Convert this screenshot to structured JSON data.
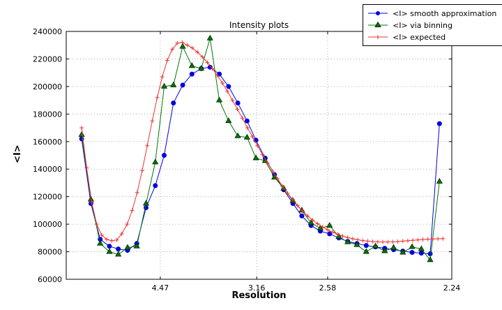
{
  "figure": {
    "title": "Intensity plots",
    "xlabel": "Resolution",
    "ylabel": "<I>"
  },
  "legend": {
    "position": "upper-right, outside axes",
    "entries": [
      {
        "label": "<I> smooth approximation",
        "color": "#0000dd",
        "marker": "circle"
      },
      {
        "label": "<I> via binning",
        "color": "#007700",
        "marker": "triangle",
        "edge": "#002200"
      },
      {
        "label": "<I> expected",
        "color": "#ee3333",
        "marker": "plus"
      }
    ]
  },
  "chart_data": {
    "type": "line",
    "title": "Intensity plots",
    "xlabel": "Resolution",
    "ylabel": "<I>",
    "ylim": [
      60000,
      240000
    ],
    "y_ticks": [
      60000,
      80000,
      100000,
      120000,
      140000,
      160000,
      180000,
      200000,
      220000,
      240000
    ],
    "x_ticks": [
      {
        "label": "4.47",
        "pos": 0.244
      },
      {
        "label": "3.16",
        "pos": 0.494
      },
      {
        "label": "2.58",
        "pos": 0.678
      },
      {
        "label": "2.24",
        "pos": 1.0
      }
    ],
    "x_scale_note": "resolution in Angstrom, decreasing left to right; pos is fraction of axis width",
    "grid": true,
    "series": [
      {
        "name": "<I> smooth approximation",
        "color": "#0000dd",
        "marker": "circle",
        "points": [
          [
            0.04,
            162000
          ],
          [
            0.064,
            115000
          ],
          [
            0.088,
            89000
          ],
          [
            0.112,
            84000
          ],
          [
            0.135,
            82000
          ],
          [
            0.159,
            81000
          ],
          [
            0.183,
            86000
          ],
          [
            0.207,
            112000
          ],
          [
            0.231,
            128000
          ],
          [
            0.254,
            150000
          ],
          [
            0.278,
            188000
          ],
          [
            0.302,
            201000
          ],
          [
            0.326,
            209000
          ],
          [
            0.35,
            213000
          ],
          [
            0.373,
            214000
          ],
          [
            0.397,
            209000
          ],
          [
            0.421,
            200000
          ],
          [
            0.445,
            188000
          ],
          [
            0.469,
            175000
          ],
          [
            0.492,
            161000
          ],
          [
            0.516,
            148000
          ],
          [
            0.54,
            136000
          ],
          [
            0.564,
            125000
          ],
          [
            0.588,
            115000
          ],
          [
            0.611,
            106000
          ],
          [
            0.635,
            99000
          ],
          [
            0.659,
            95000
          ],
          [
            0.683,
            93000
          ],
          [
            0.707,
            90000
          ],
          [
            0.73,
            87500
          ],
          [
            0.754,
            86000
          ],
          [
            0.778,
            84500
          ],
          [
            0.802,
            83500
          ],
          [
            0.826,
            82500
          ],
          [
            0.849,
            81500
          ],
          [
            0.873,
            80500
          ],
          [
            0.897,
            79500
          ],
          [
            0.921,
            79000
          ],
          [
            0.944,
            78500
          ],
          [
            0.968,
            173000
          ]
        ]
      },
      {
        "name": "<I> via binning",
        "color": "#007700",
        "marker": "triangle",
        "edge": "#002200",
        "points": [
          [
            0.04,
            165000
          ],
          [
            0.064,
            118000
          ],
          [
            0.088,
            86000
          ],
          [
            0.112,
            80000
          ],
          [
            0.135,
            78000
          ],
          [
            0.159,
            83000
          ],
          [
            0.183,
            84000
          ],
          [
            0.207,
            115000
          ],
          [
            0.231,
            145000
          ],
          [
            0.254,
            200000
          ],
          [
            0.278,
            201000
          ],
          [
            0.302,
            229000
          ],
          [
            0.326,
            215000
          ],
          [
            0.35,
            213000
          ],
          [
            0.373,
            235000
          ],
          [
            0.397,
            190000
          ],
          [
            0.421,
            175000
          ],
          [
            0.445,
            164000
          ],
          [
            0.469,
            163000
          ],
          [
            0.492,
            148000
          ],
          [
            0.516,
            146000
          ],
          [
            0.54,
            134000
          ],
          [
            0.564,
            126000
          ],
          [
            0.588,
            117000
          ],
          [
            0.611,
            110000
          ],
          [
            0.635,
            101000
          ],
          [
            0.659,
            97000
          ],
          [
            0.683,
            99000
          ],
          [
            0.707,
            91000
          ],
          [
            0.73,
            87000
          ],
          [
            0.754,
            85000
          ],
          [
            0.778,
            80000
          ],
          [
            0.802,
            84000
          ],
          [
            0.826,
            80500
          ],
          [
            0.849,
            83000
          ],
          [
            0.873,
            79500
          ],
          [
            0.897,
            83500
          ],
          [
            0.921,
            82000
          ],
          [
            0.944,
            74000
          ],
          [
            0.968,
            131000
          ]
        ]
      },
      {
        "name": "<I> expected",
        "color": "#ee3333",
        "marker": "plus",
        "points": [
          [
            0.04,
            170000
          ],
          [
            0.053,
            141000
          ],
          [
            0.066,
            116000
          ],
          [
            0.079,
            100000
          ],
          [
            0.092,
            92000
          ],
          [
            0.105,
            89000
          ],
          [
            0.118,
            88000
          ],
          [
            0.131,
            88500
          ],
          [
            0.144,
            93000
          ],
          [
            0.158,
            100000
          ],
          [
            0.171,
            110000
          ],
          [
            0.184,
            123000
          ],
          [
            0.197,
            139000
          ],
          [
            0.21,
            157000
          ],
          [
            0.223,
            175000
          ],
          [
            0.236,
            192000
          ],
          [
            0.249,
            207000
          ],
          [
            0.262,
            219000
          ],
          [
            0.275,
            227000
          ],
          [
            0.288,
            231500
          ],
          [
            0.301,
            232000
          ],
          [
            0.314,
            230000
          ],
          [
            0.327,
            228000
          ],
          [
            0.34,
            225000
          ],
          [
            0.353,
            221500
          ],
          [
            0.366,
            217500
          ],
          [
            0.379,
            213000
          ],
          [
            0.392,
            208000
          ],
          [
            0.405,
            202500
          ],
          [
            0.418,
            196500
          ],
          [
            0.431,
            190000
          ],
          [
            0.444,
            183500
          ],
          [
            0.457,
            177000
          ],
          [
            0.47,
            170000
          ],
          [
            0.483,
            163500
          ],
          [
            0.496,
            157000
          ],
          [
            0.509,
            150500
          ],
          [
            0.522,
            144500
          ],
          [
            0.535,
            138500
          ],
          [
            0.548,
            133000
          ],
          [
            0.561,
            127500
          ],
          [
            0.574,
            122500
          ],
          [
            0.587,
            118000
          ],
          [
            0.6,
            113500
          ],
          [
            0.613,
            109500
          ],
          [
            0.626,
            106000
          ],
          [
            0.639,
            103000
          ],
          [
            0.652,
            100300
          ],
          [
            0.665,
            98000
          ],
          [
            0.678,
            96000
          ],
          [
            0.691,
            94200
          ],
          [
            0.704,
            92700
          ],
          [
            0.717,
            91400
          ],
          [
            0.73,
            90300
          ],
          [
            0.743,
            89400
          ],
          [
            0.756,
            88700
          ],
          [
            0.769,
            88100
          ],
          [
            0.782,
            87700
          ],
          [
            0.795,
            87400
          ],
          [
            0.808,
            87200
          ],
          [
            0.821,
            87100
          ],
          [
            0.834,
            87100
          ],
          [
            0.847,
            87200
          ],
          [
            0.86,
            87400
          ],
          [
            0.873,
            87700
          ],
          [
            0.886,
            88000
          ],
          [
            0.899,
            88300
          ],
          [
            0.912,
            88600
          ],
          [
            0.925,
            88900
          ],
          [
            0.938,
            89100
          ],
          [
            0.951,
            89300
          ],
          [
            0.964,
            89400
          ],
          [
            0.977,
            89500
          ]
        ]
      }
    ]
  }
}
